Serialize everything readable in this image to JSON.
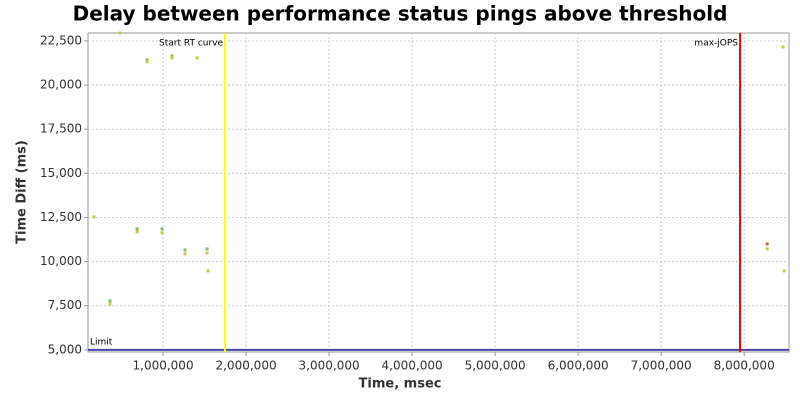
{
  "chart_data": {
    "type": "scatter",
    "title": "Delay between performance status pings above threshold",
    "x_label": "Time, msec",
    "y_label": "Time Diff (ms)",
    "x": [
      169000,
      361000,
      361000,
      482000,
      687000,
      687000,
      807000,
      807000,
      988000,
      988000,
      1108000,
      1108000,
      1265000,
      1265000,
      1410000,
      1530000,
      1530000,
      1542000,
      8277000,
      8277000,
      8470000,
      8482000
    ],
    "values": [
      12530,
      7775,
      7600,
      22950,
      11850,
      11680,
      21425,
      21310,
      11850,
      11630,
      21650,
      21540,
      10660,
      10440,
      21540,
      10720,
      10490,
      9475,
      11000,
      10720,
      22160,
      9475
    ],
    "colors": [
      "#cccc44",
      "#88bb66",
      "#cccc44",
      "#cccc44",
      "#88bb66",
      "#cccc44",
      "#88bb66",
      "#cccc44",
      "#88bb66",
      "#cccc44",
      "#88bb66",
      "#cccc44",
      "#88bb66",
      "#cccc44",
      "#cccc44",
      "#88bb66",
      "#cccc44",
      "#cccc44",
      "#aa7744",
      "#cccc44",
      "#cccc44",
      "#cccc44"
    ],
    "xlim": [
      96000,
      8540000
    ],
    "ylim": [
      4880,
      22950
    ],
    "xticks": [
      {
        "value": 1000000,
        "label": "1,000,000"
      },
      {
        "value": 2000000,
        "label": "2,000,000"
      },
      {
        "value": 3000000,
        "label": "3,000,000"
      },
      {
        "value": 4000000,
        "label": "4,000,000"
      },
      {
        "value": 5000000,
        "label": "5,000,000"
      },
      {
        "value": 6000000,
        "label": "6,000,000"
      },
      {
        "value": 7000000,
        "label": "7,000,000"
      },
      {
        "value": 8000000,
        "label": "8,000,000"
      }
    ],
    "yticks": [
      {
        "value": 5000,
        "label": "5,000"
      },
      {
        "value": 7500,
        "label": "7,500"
      },
      {
        "value": 10000,
        "label": "10,000"
      },
      {
        "value": 12500,
        "label": "12,500"
      },
      {
        "value": 15000,
        "label": "15,000"
      },
      {
        "value": 17500,
        "label": "17,500"
      },
      {
        "value": 20000,
        "label": "20,000"
      },
      {
        "value": 22500,
        "label": "22,500"
      }
    ],
    "grid": true,
    "vlines": [
      {
        "x": 1747000,
        "label": "Start RT curve",
        "color": "#ffff00"
      },
      {
        "x": 7950000,
        "label": "max-jOPS",
        "color": "#ff0000"
      }
    ],
    "hlines": [
      {
        "y": 5000,
        "label": "Limit",
        "color": "#4444aa"
      }
    ]
  }
}
